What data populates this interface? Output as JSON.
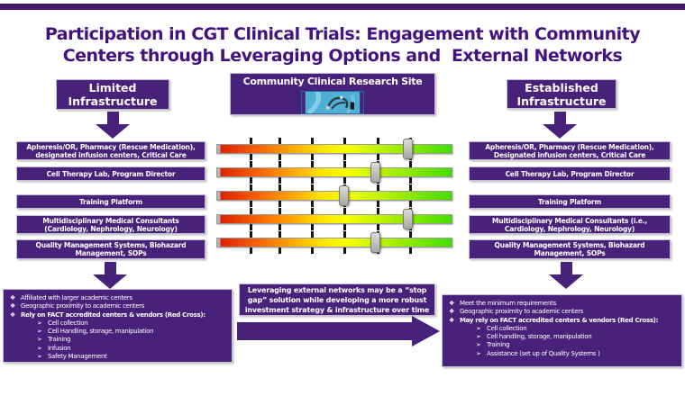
{
  "title": {
    "line1": "Participation in CGT Clinical Trials: Engagement with Community",
    "line2": "Centers through Leveraging Options and  External Networks"
  },
  "icons": {
    "diamond_bullet": "❖",
    "arrow_bullet": "➢"
  },
  "colors": {
    "slide_purple": "#48217a",
    "title_purple": "#44127f",
    "scale_red": "#dd2200",
    "scale_yellow": "#ffe000",
    "scale_green": "#44dd00",
    "handle_gray": "#c0c0c0"
  },
  "left_column": {
    "header": {
      "line1": "Limited",
      "line2": "Infrastructure"
    },
    "strips": [
      "Apheresis/OR, Pharmacy (Rescue Medication), designated infusion centers,  Critical Care",
      "Cell Therapy Lab, Program Director",
      "Training Platform",
      "Multidisciplinary Medical Consultants (Cardiology, Nephrology, Neurology)",
      "Quality Management Systems, Biohazard Management,  SOPs"
    ],
    "bullets": [
      {
        "level": 1,
        "bold": false,
        "text": "Affiliated with larger academic centers"
      },
      {
        "level": 1,
        "bold": false,
        "text": "Geographic proximity to academic centers"
      },
      {
        "level": 1,
        "bold": true,
        "text": "Rely on FACT accredited centers & vendors (Red Cross):"
      },
      {
        "level": 2,
        "bold": false,
        "text": "Cell collection"
      },
      {
        "level": 2,
        "bold": false,
        "text": "Cell Handling, storage, manipulation"
      },
      {
        "level": 2,
        "bold": false,
        "text": "Training"
      },
      {
        "level": 2,
        "bold": false,
        "text": "Infusion"
      },
      {
        "level": 2,
        "bold": false,
        "text": "Safety Management"
      }
    ]
  },
  "right_column": {
    "header": {
      "line1": "Established",
      "line2": "Infrastructure"
    },
    "strips": [
      "Apheresis/OR, Pharmacy (Rescue Medication), Designated infusion centers,  Critical Care",
      "Cell Therapy Lab, Program Director",
      "Training Platform",
      "Multidisciplinary Medical Consultants (i.e., Cardiology, Nephrology, Neurology)",
      "Quality Management Systems, Biohazard Management,  SOPs"
    ],
    "bullets": [
      {
        "level": 1,
        "bold": false,
        "text": "Meet the minimum requirements"
      },
      {
        "level": 1,
        "bold": false,
        "text": "Geographic proximity to academic centers"
      },
      {
        "level": 1,
        "bold": true,
        "text": "May rely on FACT accredited centers & vendors (Red Cross):"
      },
      {
        "level": 2,
        "bold": false,
        "text": "Cell collection"
      },
      {
        "level": 2,
        "bold": false,
        "text": "Cell handling, storage, manipulation"
      },
      {
        "level": 2,
        "bold": false,
        "text": "Training"
      },
      {
        "level": 2,
        "bold": false,
        "text": "Assistance (set up of Quality Systems )"
      }
    ]
  },
  "center": {
    "site_label": "Community Clinical Research Site",
    "note": "Leveraging external networks may be a “stop gap” solution while developing a more robust investment strategy & infrastructure over time",
    "sliders": {
      "count": 5,
      "tick_count": 6,
      "handle_positions_pct": [
        81,
        67.5,
        54,
        81,
        67.5
      ]
    }
  }
}
